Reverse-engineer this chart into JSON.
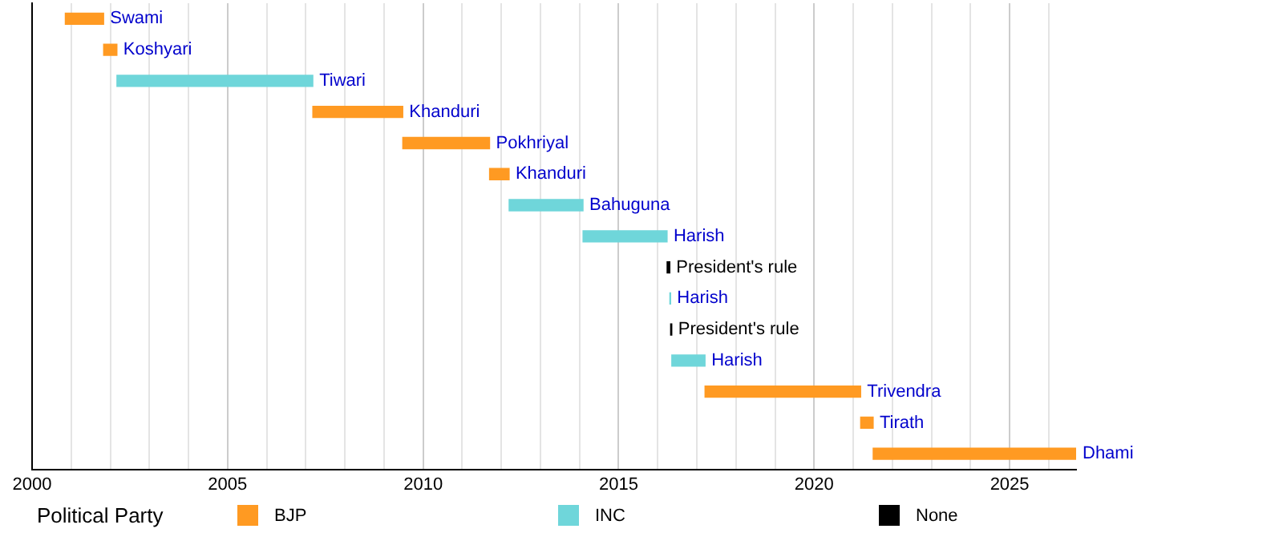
{
  "chart_data": {
    "type": "bar",
    "orientation": "horizontal",
    "legend_title": "Political Party",
    "legend": "bottom",
    "grid": "x",
    "tick_labels": "x",
    "categories": [
      "Swami",
      "Koshyari",
      "Tiwari",
      "Khanduri",
      "Pokhriyal",
      "Khanduri",
      "Bahuguna",
      "Harish",
      "President's rule",
      "Harish",
      "President's rule",
      "Harish",
      "Trivendra",
      "Tirath",
      "Dhami"
    ],
    "series": [
      {
        "name": "BJP",
        "color": "#ff9a22",
        "base": [
          2000.85,
          2001.83,
          null,
          2007.18,
          2009.48,
          2011.7,
          null,
          null,
          null,
          null,
          null,
          null,
          2017.21,
          2021.19,
          2021.51
        ],
        "values": [
          0.98,
          0.34,
          null,
          2.3,
          2.22,
          0.5,
          null,
          null,
          null,
          null,
          null,
          null,
          3.98,
          0.32,
          5.19
        ]
      },
      {
        "name": "INC",
        "color": "#6fd6da",
        "base": [
          null,
          null,
          2002.17,
          null,
          null,
          null,
          2012.2,
          2014.09,
          null,
          2016.31,
          null,
          2016.36,
          null,
          null,
          null
        ],
        "values": [
          null,
          null,
          5.01,
          null,
          null,
          null,
          1.89,
          2.15,
          null,
          0.02,
          null,
          0.85,
          null,
          null,
          null
        ]
      },
      {
        "name": "None",
        "color": "#000000",
        "base": [
          null,
          null,
          null,
          null,
          null,
          null,
          null,
          null,
          2016.24,
          null,
          2016.33,
          null,
          null,
          null,
          null
        ],
        "values": [
          null,
          null,
          null,
          null,
          null,
          null,
          null,
          null,
          0.07,
          null,
          0.03,
          null,
          null,
          null,
          null
        ]
      }
    ],
    "xlim": [
      2000,
      2026.7
    ],
    "xticks": [
      2000,
      {
        "value": 2001,
        "label": null
      },
      {
        "value": 2002,
        "label": null
      },
      {
        "value": 2003,
        "label": null
      },
      {
        "value": 2004,
        "label": null
      },
      2005,
      {
        "value": 2006,
        "label": null
      },
      {
        "value": 2007,
        "label": null
      },
      {
        "value": 2008,
        "label": null
      },
      {
        "value": 2009,
        "label": null
      },
      2010,
      {
        "value": 2011,
        "label": null
      },
      {
        "value": 2012,
        "label": null
      },
      {
        "value": 2013,
        "label": null
      },
      {
        "value": 2014,
        "label": null
      },
      2015,
      {
        "value": 2016,
        "label": null
      },
      {
        "value": 2017,
        "label": null
      },
      {
        "value": 2018,
        "label": null
      },
      {
        "value": 2019,
        "label": null
      },
      2020,
      {
        "value": 2021,
        "label": null
      },
      {
        "value": 2022,
        "label": null
      },
      {
        "value": 2023,
        "label": null
      },
      {
        "value": 2024,
        "label": null
      },
      2025,
      {
        "value": 2026,
        "label": null
      }
    ]
  }
}
